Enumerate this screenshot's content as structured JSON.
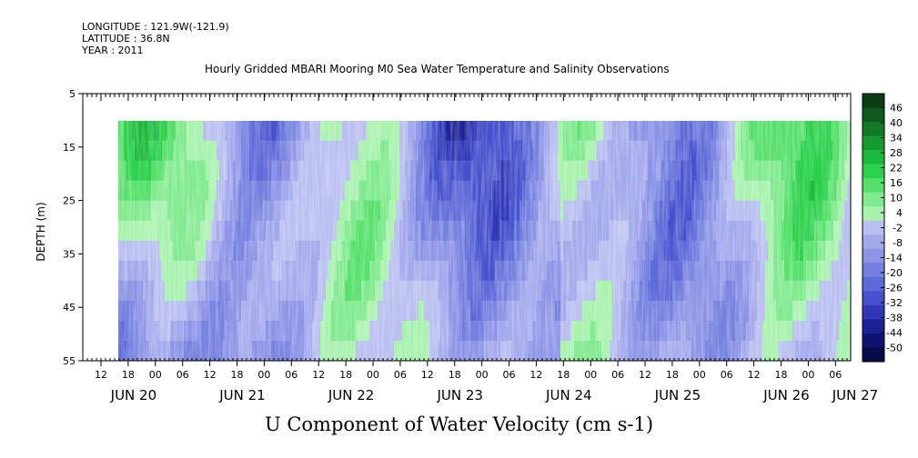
{
  "header": {
    "longitude": "LONGITUDE : 121.9W(-121.9)",
    "latitude": "LATITUDE : 36.8N",
    "year": "YEAR : 2011"
  },
  "chart_data": {
    "type": "heatmap",
    "title": "Hourly Gridded MBARI Mooring M0 Sea Water Temperature and Salinity Observations",
    "xlabel": "U Component of Water Velocity (cm s-1)",
    "ylabel": "DEPTH (m)",
    "y_ticks": [
      5,
      15,
      25,
      35,
      45,
      55
    ],
    "ylim": [
      55,
      5
    ],
    "data_depth_range": [
      10,
      55
    ],
    "hour_ticks": [
      "12",
      "18",
      "00",
      "06",
      "12",
      "18",
      "00",
      "06",
      "12",
      "18",
      "00",
      "06",
      "12",
      "18",
      "00",
      "06",
      "12",
      "18",
      "00",
      "06",
      "12",
      "18",
      "00",
      "06",
      "12",
      "18",
      "00",
      "06"
    ],
    "day_labels": [
      "JUN 20",
      "JUN 21",
      "JUN 22",
      "JUN 23",
      "JUN 24",
      "JUN 25",
      "JUN 26",
      "JUN 27"
    ],
    "colorbar": {
      "labels": [
        "46",
        "40",
        "34",
        "28",
        "22",
        "16",
        "10",
        "4",
        "-2",
        "-8",
        "-14",
        "-20",
        "-26",
        "-32",
        "-38",
        "-44",
        "-50"
      ],
      "colors": [
        "#0a3d14",
        "#0d5a1c",
        "#107a26",
        "#159a30",
        "#1ab83b",
        "#2bd04c",
        "#55e06a",
        "#80ea8e",
        "#a8f2ae",
        "#b9bff0",
        "#a3aaec",
        "#8c94e6",
        "#7480df",
        "#5e6ad8",
        "#4652cd",
        "#3038b8",
        "#1c2296",
        "#0e1270",
        "#06094a"
      ]
    },
    "value_bands": [
      {
        "day": "JUN 20",
        "surface": "blue",
        "deep": "blue / green"
      },
      {
        "day": "JUN 21",
        "surface": "green",
        "deep": "blue"
      },
      {
        "day": "JUN 22",
        "surface": "green",
        "deep": "blue"
      },
      {
        "day": "JUN 23",
        "surface": "green",
        "deep": "blue"
      },
      {
        "day": "JUN 24",
        "surface": "green",
        "deep": "green / blue"
      },
      {
        "day": "JUN 25",
        "surface": "green / blue",
        "deep": "green"
      },
      {
        "day": "JUN 26",
        "surface": "blue",
        "deep": "green"
      },
      {
        "day": "JUN 27",
        "surface": "green",
        "deep": "green"
      }
    ]
  }
}
